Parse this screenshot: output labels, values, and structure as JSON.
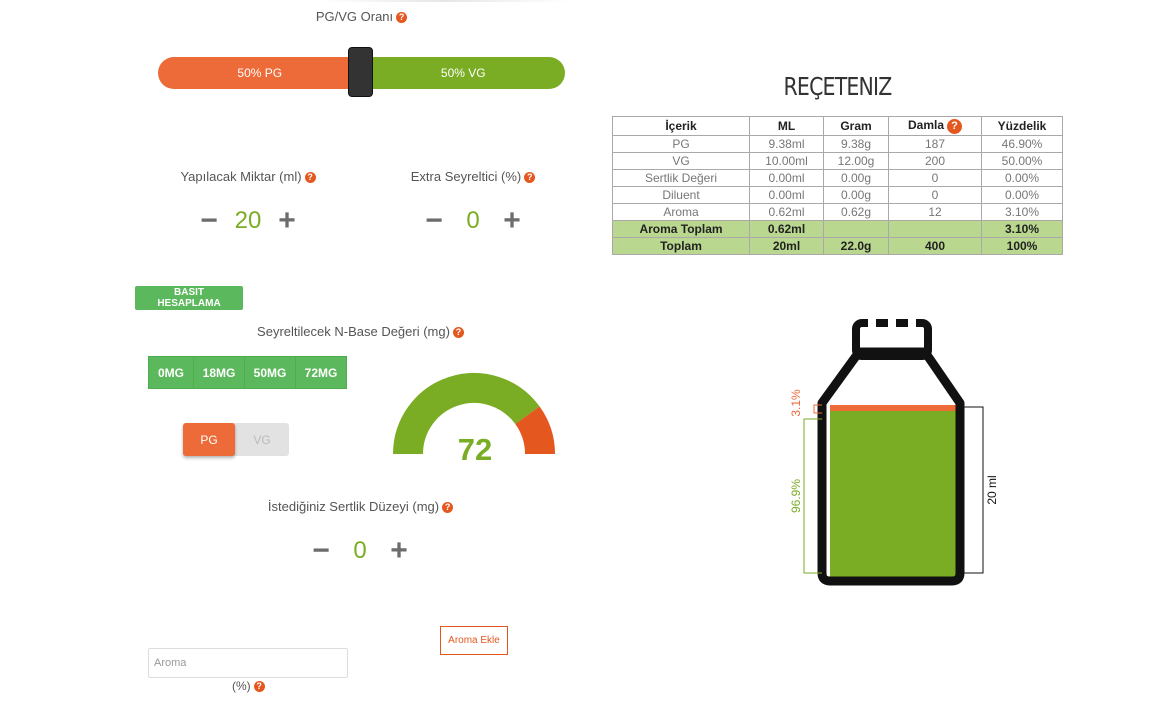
{
  "slider": {
    "title": "PG/VG Oranı",
    "pg_label": "50% PG",
    "vg_label": "50% VG",
    "pg_percent": 50,
    "colors": {
      "pg": "#ec6b38",
      "vg": "#7aad23"
    }
  },
  "amount": {
    "label": "Yapılacak Miktar (ml)",
    "value": "20"
  },
  "extra": {
    "label": "Extra Seyreltici (%)",
    "value": "0"
  },
  "basic_button": "BASIT HESAPLAMA",
  "nbase": {
    "label": "Seyreltilecek N-Base Değeri (mg)",
    "options": [
      "0MG",
      "18MG",
      "50MG",
      "72MG"
    ],
    "toggle": {
      "pg": "PG",
      "vg": "VG",
      "selected": "PG"
    },
    "gauge_value": "72",
    "gauge_fraction": 0.8
  },
  "strength": {
    "label": "İstediğiniz Sertlik Düzeyi (mg)",
    "value": "0"
  },
  "aroma": {
    "button": "Aroma Ekle",
    "placeholder": "Aroma",
    "percent_label": "(%)"
  },
  "recipe": {
    "title": "REÇETENIZ",
    "headers": [
      "İçerik",
      "ML",
      "Gram",
      "Damla",
      "Yüzdelik"
    ],
    "rows": [
      [
        "PG",
        "9.38ml",
        "9.38g",
        "187",
        "46.90%"
      ],
      [
        "VG",
        "10.00ml",
        "12.00g",
        "200",
        "50.00%"
      ],
      [
        "Sertlik Değeri",
        "0.00ml",
        "0.00g",
        "0",
        "0.00%"
      ],
      [
        "Diluent",
        "0.00ml",
        "0.00g",
        "0",
        "0.00%"
      ],
      [
        "Aroma",
        "0.62ml",
        "0.62g",
        "12",
        "3.10%"
      ]
    ],
    "totals": [
      [
        "Aroma Toplam",
        "0.62ml",
        "",
        "",
        "3.10%"
      ],
      [
        "Toplam",
        "20ml",
        "22.0g",
        "400",
        "100%"
      ]
    ]
  },
  "bottle": {
    "aroma_label": "3.1%",
    "base_label": "96.9%",
    "total_label": "20 ml",
    "aroma_fraction": 0.031,
    "colors": {
      "liquid": "#7aad23",
      "aroma": "#ec6b38",
      "outline": "#111111"
    }
  }
}
